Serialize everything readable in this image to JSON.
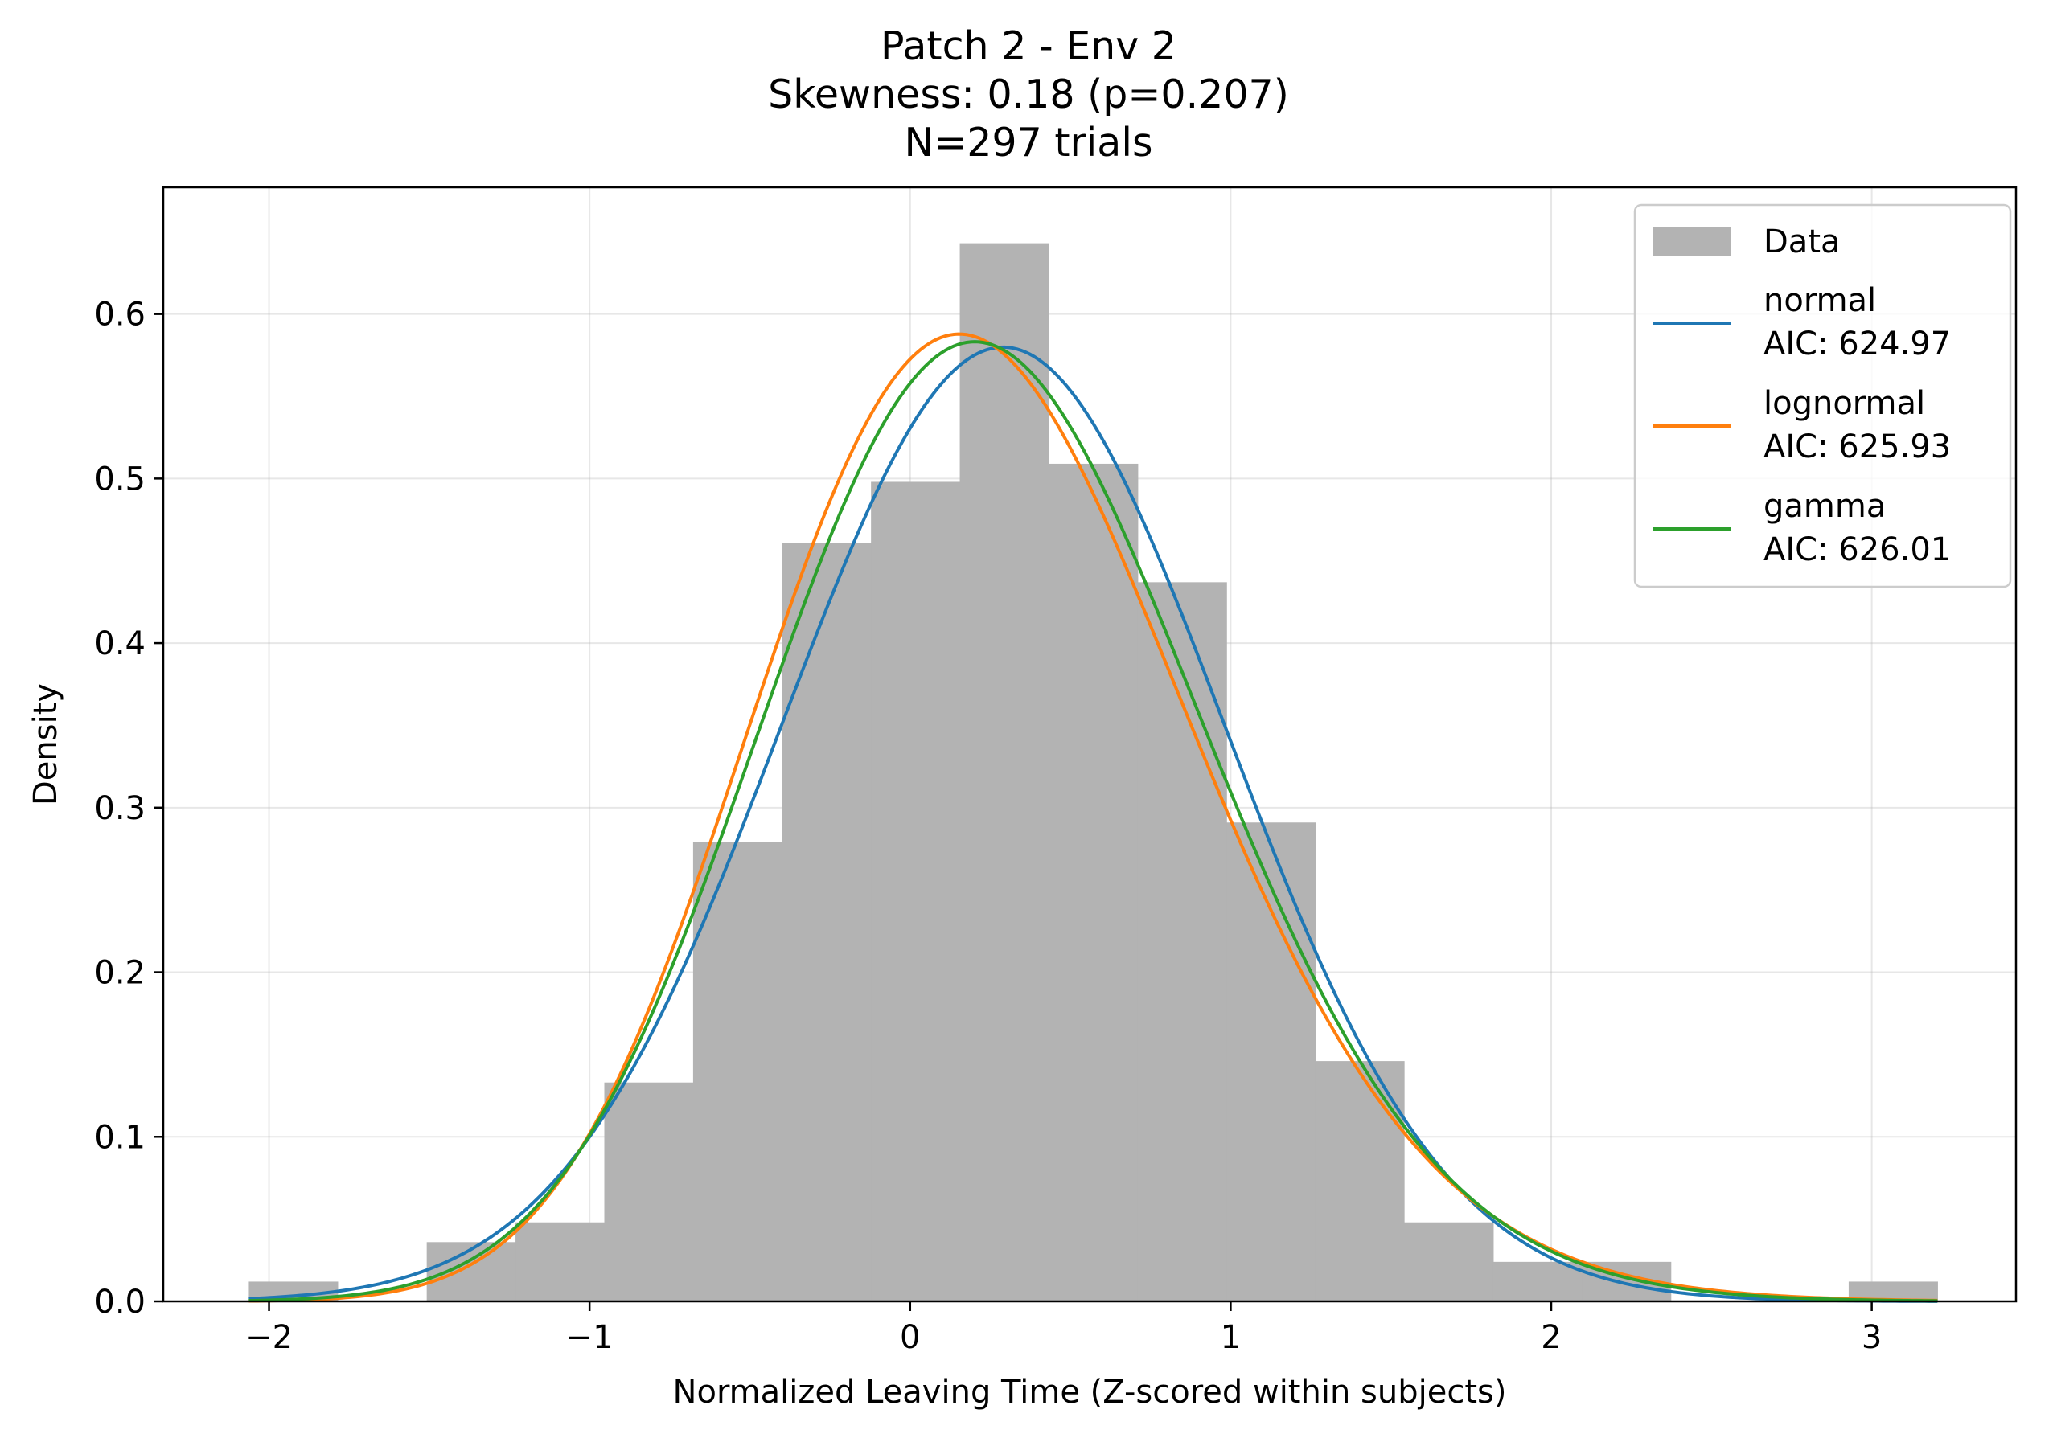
{
  "title_lines": [
    "Patch 2 - Env 2",
    "Skewness: 0.18 (p=0.207)",
    "N=297 trials"
  ],
  "chart_data": {
    "type": "bar",
    "title": "Patch 2 - Env 2\nSkewness: 0.18 (p=0.207)\nN=297 trials",
    "xlabel": "Normalized Leaving Time (Z-scored within subjects)",
    "ylabel": "Density",
    "xlim": [
      -2.33,
      3.45
    ],
    "ylim": [
      0,
      0.677
    ],
    "grid": true,
    "legend_position": "top-right",
    "x_ticks": [
      -2,
      -1,
      0,
      1,
      2,
      3
    ],
    "x_tick_labels": [
      "−2",
      "−1",
      "0",
      "1",
      "2",
      "3"
    ],
    "y_ticks": [
      0.0,
      0.1,
      0.2,
      0.3,
      0.4,
      0.5,
      0.6
    ],
    "y_tick_labels": [
      "0.0",
      "0.1",
      "0.2",
      "0.3",
      "0.4",
      "0.5",
      "0.6"
    ],
    "histogram": {
      "name": "Data",
      "color": "#b3b3b3",
      "bin_edges": [
        -2.063,
        -1.786,
        -1.508,
        -1.231,
        -0.954,
        -0.677,
        -0.399,
        -0.122,
        0.155,
        0.432,
        0.71,
        0.987,
        1.264,
        1.541,
        1.819,
        2.096,
        2.373,
        2.65,
        2.928,
        3.205
      ],
      "densities": [
        0.012,
        0.0,
        0.036,
        0.048,
        0.133,
        0.279,
        0.461,
        0.498,
        0.643,
        0.509,
        0.437,
        0.291,
        0.146,
        0.048,
        0.024,
        0.024,
        0.0,
        0.0,
        0.012
      ]
    },
    "series": [
      {
        "name": "normal",
        "label_lines": [
          "normal",
          "AIC: 624.97"
        ],
        "aic": 624.97,
        "color": "#1f77b4",
        "distribution": "normal",
        "mean": 0.29,
        "sd": 0.688,
        "x_range": [
          -2.063,
          3.205
        ]
      },
      {
        "name": "lognormal",
        "label_lines": [
          "lognormal",
          "AIC: 625.93"
        ],
        "aic": 625.93,
        "color": "#ff7f0e",
        "distribution": "lognormal",
        "shift": -6.6,
        "mu": 1.92,
        "sigma": 0.1,
        "x_range": [
          -2.063,
          3.205
        ]
      },
      {
        "name": "gamma",
        "label_lines": [
          "gamma",
          "AIC: 626.01"
        ],
        "aic": 626.01,
        "color": "#2ca02c",
        "distribution": "gamma",
        "shift": -6.6,
        "shape": 100,
        "scale": 0.0687,
        "x_range": [
          -2.063,
          3.205
        ]
      }
    ]
  }
}
